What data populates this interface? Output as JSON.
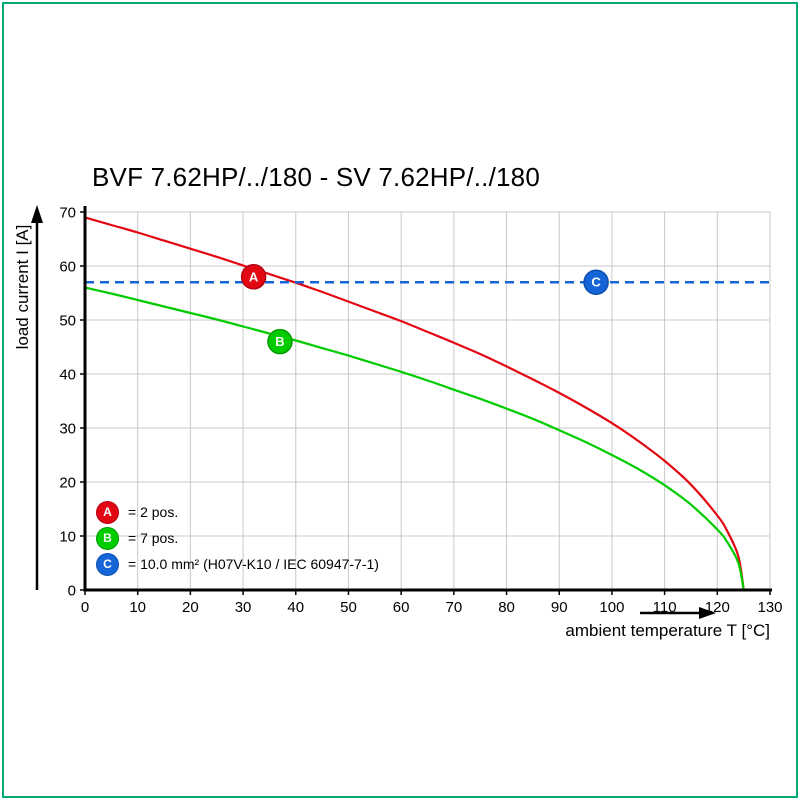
{
  "frame_color": "#00a878",
  "chart_data": {
    "type": "line",
    "title": "BVF 7.62HP/../180 - SV 7.62HP/../180",
    "xlabel": "ambient temperature T [°C]",
    "ylabel": "load current I [A]",
    "xlim": [
      0,
      130
    ],
    "ylim": [
      0,
      70
    ],
    "xticks": [
      0,
      10,
      20,
      30,
      40,
      50,
      60,
      70,
      80,
      90,
      100,
      110,
      120,
      130
    ],
    "yticks": [
      0,
      10,
      20,
      30,
      40,
      50,
      60,
      70
    ],
    "grid": true,
    "grid_color": "#c8c8c8",
    "axis_color": "#000000",
    "legend_position": "bottom-left-inside",
    "series": [
      {
        "name": "A",
        "legend_label": "= 2 pos.",
        "color": "#e30613",
        "marker_edge": "#b5000f",
        "line_style": "solid",
        "x": [
          0,
          5,
          10,
          15,
          20,
          25,
          30,
          35,
          40,
          45,
          50,
          55,
          60,
          65,
          70,
          75,
          80,
          85,
          90,
          95,
          100,
          105,
          110,
          115,
          120,
          122,
          124,
          125
        ],
        "y": [
          69,
          67.6,
          66.2,
          64.7,
          63.2,
          61.7,
          60.1,
          58.5,
          56.9,
          55.2,
          53.4,
          51.6,
          49.8,
          47.8,
          45.8,
          43.7,
          41.4,
          39.0,
          36.5,
          33.8,
          30.9,
          27.6,
          23.9,
          19.5,
          13.8,
          10.7,
          6.2,
          0
        ],
        "marker": {
          "x": 32,
          "y": 58
        }
      },
      {
        "name": "B",
        "legend_label": "= 7 pos.",
        "color": "#00cc00",
        "marker_edge": "#009c00",
        "line_style": "solid",
        "x": [
          0,
          5,
          10,
          15,
          20,
          25,
          30,
          35,
          40,
          45,
          50,
          55,
          60,
          65,
          70,
          75,
          80,
          85,
          90,
          95,
          100,
          105,
          110,
          115,
          120,
          122,
          124,
          125
        ],
        "y": [
          56,
          54.9,
          53.7,
          52.5,
          51.3,
          50.1,
          48.8,
          47.5,
          46.2,
          44.8,
          43.4,
          41.9,
          40.4,
          38.8,
          37.1,
          35.4,
          33.6,
          31.7,
          29.6,
          27.4,
          25.0,
          22.4,
          19.4,
          15.8,
          11.2,
          8.7,
          5.0,
          0
        ],
        "marker": {
          "x": 37,
          "y": 46
        }
      },
      {
        "name": "C",
        "legend_label": "= 10.0 mm² (H07V-K10 / IEC 60947-7-1)",
        "color": "#1565d8",
        "marker_edge": "#0d4fb0",
        "line_style": "dashed",
        "value": 57,
        "x": [
          0,
          130
        ],
        "y": [
          57,
          57
        ],
        "marker": {
          "x": 97,
          "y": 57
        }
      }
    ]
  }
}
